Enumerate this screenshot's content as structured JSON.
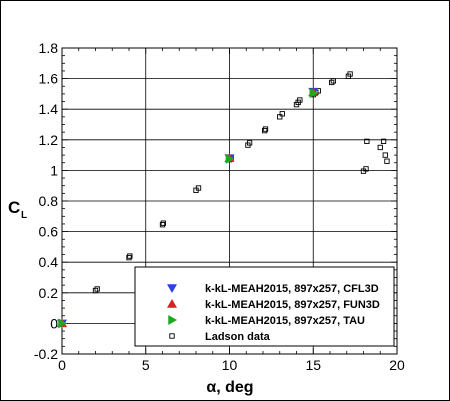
{
  "chart_data": {
    "type": "scatter",
    "xlabel": "α, deg",
    "ylabel": "C",
    "ylabel_sub": "L",
    "xlim": [
      0,
      20
    ],
    "ylim": [
      -0.2,
      1.8
    ],
    "xticks": [
      0,
      5,
      10,
      15,
      20
    ],
    "yticks": [
      -0.2,
      0,
      0.2,
      0.4,
      0.6,
      0.8,
      1,
      1.2,
      1.4,
      1.6,
      1.8
    ],
    "grid": true,
    "legend_position": "bottom-right",
    "series": [
      {
        "name": "k-kL-MEAH2015, 897x257, CFL3D",
        "marker": "triangle-down",
        "color": "#2f3fe0",
        "x": [
          0,
          10,
          15
        ],
        "y": [
          0.0,
          1.08,
          1.515
        ]
      },
      {
        "name": "k-kL-MEAH2015, 897x257, FUN3D",
        "marker": "triangle-up",
        "color": "#d62222",
        "x": [
          0,
          10,
          15
        ],
        "y": [
          0.0,
          1.08,
          1.51
        ]
      },
      {
        "name": "k-kL-MEAH2015, 897x257, TAU",
        "marker": "triangle-right",
        "color": "#1ea81e",
        "x": [
          0,
          10,
          15
        ],
        "y": [
          0.0,
          1.075,
          1.505
        ]
      },
      {
        "name": "Ladson data",
        "marker": "open-square",
        "color": "#000000",
        "x": [
          -0.05,
          0.05,
          2.0,
          2.1,
          4.0,
          4.05,
          6.0,
          6.05,
          8.0,
          8.15,
          10.0,
          10.1,
          11.1,
          11.2,
          12.1,
          12.15,
          13.0,
          13.15,
          14.0,
          14.1,
          14.2,
          15.0,
          15.15,
          15.3,
          16.1,
          16.2,
          17.1,
          17.2,
          18.0,
          18.15,
          18.2,
          19.0,
          19.2,
          19.3,
          19.4
        ],
        "y": [
          0.0,
          0.005,
          0.215,
          0.225,
          0.43,
          0.44,
          0.645,
          0.655,
          0.87,
          0.885,
          1.07,
          1.08,
          1.165,
          1.18,
          1.26,
          1.27,
          1.35,
          1.37,
          1.43,
          1.445,
          1.46,
          1.495,
          1.51,
          1.52,
          1.575,
          1.585,
          1.615,
          1.63,
          0.995,
          1.01,
          1.19,
          1.15,
          1.19,
          1.1,
          1.06
        ]
      }
    ]
  }
}
